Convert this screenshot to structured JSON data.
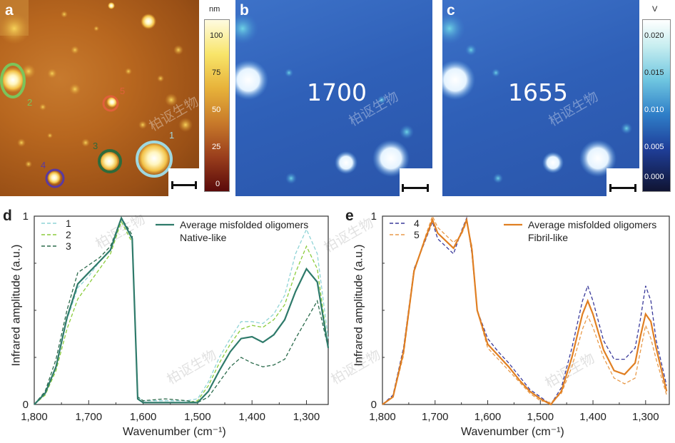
{
  "panels": {
    "a": {
      "label": "a"
    },
    "b": {
      "label": "b",
      "wavenumber_text": "1700"
    },
    "c": {
      "label": "c",
      "wavenumber_text": "1655"
    },
    "d": {
      "label": "d"
    },
    "e": {
      "label": "e"
    }
  },
  "colorbar_height": {
    "unit": "nm",
    "ticks": [
      "100",
      "75",
      "50",
      "25",
      "0"
    ]
  },
  "colorbar_voltage": {
    "unit": "V",
    "ticks": [
      "0.020",
      "0.015",
      "0.010",
      "0.005",
      "0.000"
    ]
  },
  "markers": [
    {
      "id": "1",
      "color": "#9fd8e0"
    },
    {
      "id": "2",
      "color": "#7cc45a"
    },
    {
      "id": "3",
      "color": "#2e6b3a"
    },
    {
      "id": "4",
      "color": "#5a3aa0"
    },
    {
      "id": "5",
      "color": "#e0603a"
    }
  ],
  "watermark": "柏讴生物",
  "colors": {
    "afm_brown": "#b0641e",
    "ir_blue": "#2f5fb8",
    "native_line": "#2e7a6a",
    "fibril_line": "#e07f22"
  },
  "chart_data": [
    {
      "type": "line",
      "panel": "d",
      "xlabel": "Wavenumber (cm⁻¹)",
      "ylabel": "Infrared amplitude (a.u.)",
      "xlim": [
        1800,
        1260
      ],
      "ylim": [
        0,
        1
      ],
      "x_ticks": [
        "1,800",
        "1,700",
        "1,600",
        "1,500",
        "1,400",
        "1,300"
      ],
      "y_ticks": [
        "0",
        "1"
      ],
      "legend_left": [
        "1",
        "2",
        "3"
      ],
      "legend_right": [
        "Average misfolded oligomers",
        "Native-like"
      ],
      "series": [
        {
          "name": "1",
          "style": "dashed",
          "color": "#8fd3d6",
          "x": [
            1800,
            1780,
            1760,
            1740,
            1720,
            1700,
            1680,
            1660,
            1645,
            1640,
            1620,
            1610,
            1600,
            1560,
            1520,
            1500,
            1480,
            1460,
            1440,
            1420,
            1400,
            1380,
            1360,
            1340,
            1320,
            1300,
            1280,
            1260
          ],
          "y": [
            0,
            0.06,
            0.2,
            0.45,
            0.62,
            0.68,
            0.76,
            0.82,
            0.94,
            0.98,
            0.88,
            0.04,
            0.02,
            0.02,
            0.02,
            0.03,
            0.12,
            0.25,
            0.35,
            0.44,
            0.44,
            0.43,
            0.48,
            0.58,
            0.8,
            0.93,
            0.8,
            0.35
          ]
        },
        {
          "name": "2",
          "style": "dashed",
          "color": "#8ccc3c",
          "x": [
            1800,
            1780,
            1760,
            1740,
            1720,
            1700,
            1680,
            1660,
            1645,
            1640,
            1620,
            1610,
            1600,
            1560,
            1520,
            1500,
            1480,
            1460,
            1440,
            1420,
            1400,
            1380,
            1360,
            1340,
            1320,
            1300,
            1280,
            1260
          ],
          "y": [
            0,
            0.05,
            0.18,
            0.4,
            0.56,
            0.64,
            0.72,
            0.8,
            0.93,
            0.97,
            0.86,
            0.03,
            0.01,
            0.01,
            0.01,
            0.02,
            0.1,
            0.22,
            0.32,
            0.4,
            0.42,
            0.41,
            0.45,
            0.53,
            0.7,
            0.84,
            0.72,
            0.3
          ]
        },
        {
          "name": "3",
          "style": "dashed",
          "color": "#2b6b4c",
          "x": [
            1800,
            1780,
            1760,
            1740,
            1720,
            1700,
            1680,
            1660,
            1645,
            1640,
            1620,
            1610,
            1600,
            1560,
            1520,
            1500,
            1480,
            1460,
            1440,
            1420,
            1400,
            1380,
            1360,
            1340,
            1320,
            1300,
            1280,
            1260
          ],
          "y": [
            0,
            0.07,
            0.24,
            0.5,
            0.7,
            0.74,
            0.78,
            0.84,
            0.95,
            0.99,
            0.9,
            0.04,
            0.02,
            0.03,
            0.02,
            0.01,
            0.04,
            0.12,
            0.2,
            0.25,
            0.22,
            0.2,
            0.21,
            0.24,
            0.35,
            0.45,
            0.55,
            0.3
          ]
        },
        {
          "name": "Average misfolded oligomers",
          "style": "solid",
          "color": "#2e7a6a",
          "x": [
            1800,
            1780,
            1760,
            1740,
            1720,
            1700,
            1680,
            1660,
            1645,
            1640,
            1620,
            1610,
            1600,
            1560,
            1520,
            1500,
            1480,
            1460,
            1440,
            1420,
            1400,
            1380,
            1360,
            1340,
            1320,
            1300,
            1280,
            1260
          ],
          "y": [
            0,
            0.06,
            0.2,
            0.46,
            0.64,
            0.7,
            0.76,
            0.82,
            0.95,
            0.99,
            0.88,
            0.03,
            0.01,
            0.01,
            0.01,
            0.01,
            0.07,
            0.18,
            0.28,
            0.35,
            0.36,
            0.33,
            0.37,
            0.45,
            0.6,
            0.72,
            0.65,
            0.3
          ]
        }
      ]
    },
    {
      "type": "line",
      "panel": "e",
      "xlabel": "Wavenumber (cm⁻¹)",
      "ylabel": "Infrared amplitude (a.u.)",
      "xlim": [
        1800,
        1255
      ],
      "ylim": [
        0,
        1
      ],
      "x_ticks": [
        "1,800",
        "1,700",
        "1,600",
        "1,500",
        "1,400",
        "1,300"
      ],
      "y_ticks": [
        "0",
        "1"
      ],
      "legend_left": [
        "4",
        "5"
      ],
      "legend_right": [
        "Average misfolded oligomers",
        "Fibril-like"
      ],
      "series": [
        {
          "name": "4",
          "style": "dashed",
          "color": "#3a3a9a",
          "x": [
            1800,
            1780,
            1760,
            1740,
            1720,
            1705,
            1695,
            1680,
            1665,
            1650,
            1640,
            1630,
            1620,
            1600,
            1580,
            1560,
            1540,
            1520,
            1500,
            1480,
            1460,
            1440,
            1420,
            1410,
            1400,
            1380,
            1360,
            1340,
            1320,
            1310,
            1300,
            1290,
            1280,
            1260
          ],
          "y": [
            0,
            0.05,
            0.3,
            0.72,
            0.86,
            0.97,
            0.88,
            0.84,
            0.8,
            0.92,
            0.99,
            0.8,
            0.5,
            0.35,
            0.28,
            0.22,
            0.15,
            0.08,
            0.04,
            0.0,
            0.09,
            0.3,
            0.55,
            0.63,
            0.55,
            0.34,
            0.24,
            0.24,
            0.3,
            0.45,
            0.63,
            0.55,
            0.34,
            0.1
          ]
        },
        {
          "name": "5",
          "style": "dashed",
          "color": "#e89a4a",
          "x": [
            1800,
            1780,
            1760,
            1740,
            1720,
            1705,
            1695,
            1680,
            1665,
            1650,
            1640,
            1630,
            1620,
            1600,
            1580,
            1560,
            1540,
            1520,
            1500,
            1480,
            1460,
            1440,
            1420,
            1410,
            1400,
            1380,
            1360,
            1340,
            1320,
            1310,
            1300,
            1290,
            1280,
            1260
          ],
          "y": [
            0,
            0.04,
            0.26,
            0.7,
            0.88,
            1.0,
            0.94,
            0.9,
            0.86,
            0.9,
            0.97,
            0.84,
            0.5,
            0.3,
            0.24,
            0.18,
            0.12,
            0.06,
            0.02,
            0.01,
            0.06,
            0.2,
            0.4,
            0.47,
            0.41,
            0.25,
            0.14,
            0.11,
            0.14,
            0.28,
            0.42,
            0.35,
            0.24,
            0.05
          ]
        },
        {
          "name": "Average misfolded oligomers",
          "style": "solid",
          "color": "#e07f22",
          "x": [
            1800,
            1780,
            1760,
            1740,
            1720,
            1705,
            1695,
            1680,
            1665,
            1650,
            1640,
            1630,
            1620,
            1600,
            1580,
            1560,
            1540,
            1520,
            1500,
            1480,
            1460,
            1440,
            1420,
            1410,
            1400,
            1380,
            1360,
            1340,
            1320,
            1310,
            1300,
            1290,
            1280,
            1260
          ],
          "y": [
            0,
            0.04,
            0.28,
            0.71,
            0.87,
            0.98,
            0.91,
            0.87,
            0.83,
            0.91,
            0.98,
            0.82,
            0.5,
            0.32,
            0.26,
            0.2,
            0.13,
            0.07,
            0.03,
            0.0,
            0.07,
            0.25,
            0.48,
            0.55,
            0.48,
            0.29,
            0.18,
            0.16,
            0.22,
            0.36,
            0.48,
            0.44,
            0.3,
            0.07
          ]
        }
      ]
    }
  ]
}
